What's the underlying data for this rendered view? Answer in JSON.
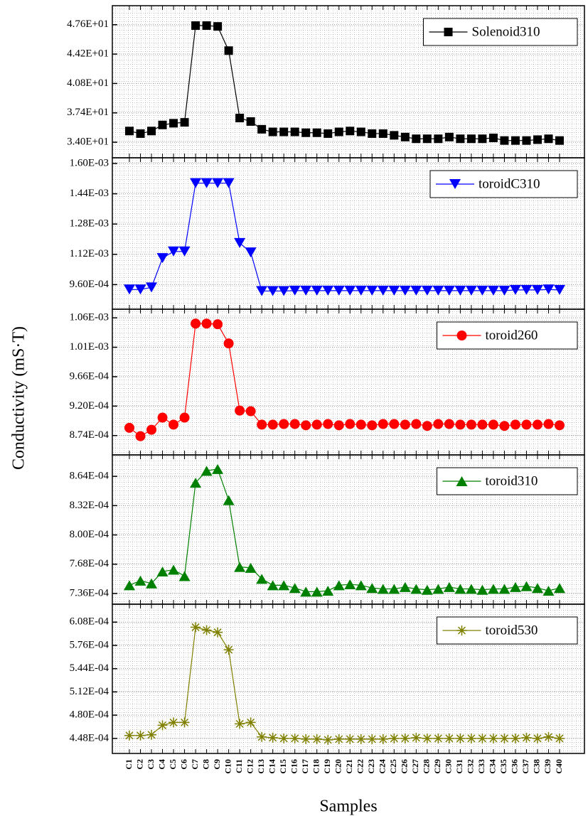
{
  "ylabel": "Conductivity (mS·T)",
  "chart_data": [
    {
      "type": "line",
      "marker": "square",
      "grid": true,
      "legend": "upper right",
      "ylim": [
        32.2,
        49.8
      ],
      "yticks": [
        {
          "value": 34,
          "label": "3.40E+01"
        },
        {
          "value": 37.4,
          "label": "3.74E+01"
        },
        {
          "value": 40.8,
          "label": "4.08E+01"
        },
        {
          "value": 44.2,
          "label": "4.42E+01"
        },
        {
          "value": 47.6,
          "label": "4.76E+01"
        }
      ],
      "series": [
        {
          "name": "Solenoid310",
          "color": "#000000",
          "values": [
            35.3,
            35.0,
            35.3,
            36.0,
            36.2,
            36.3,
            47.5,
            47.5,
            47.4,
            44.6,
            36.8,
            36.4,
            35.5,
            35.2,
            35.2,
            35.2,
            35.1,
            35.1,
            35.0,
            35.2,
            35.3,
            35.2,
            35.0,
            35.0,
            34.8,
            34.6,
            34.4,
            34.4,
            34.4,
            34.6,
            34.4,
            34.4,
            34.4,
            34.5,
            34.2,
            34.2,
            34.2,
            34.3,
            34.4,
            34.2
          ]
        }
      ]
    },
    {
      "type": "line",
      "marker": "triangle-down",
      "grid": true,
      "legend": "upper right",
      "ylim": [
        0.00083,
        0.00163
      ],
      "yticks": [
        {
          "value": 0.00096,
          "label": "9.60E-04"
        },
        {
          "value": 0.00112,
          "label": "1.12E-03"
        },
        {
          "value": 0.00128,
          "label": "1.28E-03"
        },
        {
          "value": 0.00144,
          "label": "1.44E-03"
        },
        {
          "value": 0.0016,
          "label": "1.60E-03"
        }
      ],
      "series": [
        {
          "name": "toroidC310",
          "color": "#0000ff",
          "values": [
            0.000934,
            0.000934,
            0.000945,
            0.0011,
            0.001135,
            0.001135,
            0.001496,
            0.001496,
            0.001496,
            0.001496,
            0.00118,
            0.00113,
            0.000926,
            0.000926,
            0.000926,
            0.000928,
            0.000928,
            0.000928,
            0.000928,
            0.000928,
            0.000928,
            0.000928,
            0.000928,
            0.000928,
            0.000928,
            0.000928,
            0.000928,
            0.000928,
            0.000928,
            0.000928,
            0.000928,
            0.000928,
            0.000928,
            0.000928,
            0.000928,
            0.000932,
            0.000932,
            0.000932,
            0.000934,
            0.000932
          ]
        }
      ]
    },
    {
      "type": "line",
      "marker": "circle",
      "grid": true,
      "legend": "upper right",
      "ylim": [
        0.0008437,
        0.0010715
      ],
      "yticks": [
        {
          "value": 0.000874,
          "label": "8.74E-04"
        },
        {
          "value": 0.00092,
          "label": "9.20E-04"
        },
        {
          "value": 0.000966,
          "label": "9.66E-04"
        },
        {
          "value": 0.001012,
          "label": "1.01E-03"
        },
        {
          "value": 0.001058,
          "label": "1.06E-03"
        }
      ],
      "series": [
        {
          "name": "toroid260",
          "color": "#ff0000",
          "values": [
            0.000886,
            0.000873,
            0.000883,
            0.000902,
            0.000891,
            0.000902,
            0.001049,
            0.001049,
            0.001048,
            0.001018,
            0.000913,
            0.000912,
            0.000891,
            0.000891,
            0.000892,
            0.000892,
            0.00089,
            0.000891,
            0.000892,
            0.00089,
            0.000892,
            0.000891,
            0.00089,
            0.000892,
            0.000892,
            0.000891,
            0.000892,
            0.000889,
            0.000892,
            0.000892,
            0.000891,
            0.000891,
            0.000891,
            0.000891,
            0.000889,
            0.000891,
            0.000891,
            0.000891,
            0.000892,
            0.00089
          ]
        }
      ]
    },
    {
      "type": "line",
      "marker": "triangle-up",
      "grid": true,
      "legend": "upper right",
      "ylim": [
        0.0007243,
        0.0008874
      ],
      "yticks": [
        {
          "value": 0.000736,
          "label": "7.36E-04"
        },
        {
          "value": 0.000768,
          "label": "7.68E-04"
        },
        {
          "value": 0.0008,
          "label": "8.00E-04"
        },
        {
          "value": 0.000832,
          "label": "8.32E-04"
        },
        {
          "value": 0.000864,
          "label": "8.64E-04"
        }
      ],
      "series": [
        {
          "name": "toroid310",
          "color": "#008000",
          "values": [
            0.000745,
            0.00075,
            0.000747,
            0.00076,
            0.000762,
            0.000755,
            0.000857,
            0.00087,
            0.000872,
            0.000838,
            0.000765,
            0.000764,
            0.000752,
            0.000745,
            0.000745,
            0.000742,
            0.000738,
            0.000738,
            0.000739,
            0.000745,
            0.000746,
            0.000745,
            0.000742,
            0.000741,
            0.000741,
            0.000743,
            0.000741,
            0.00074,
            0.000741,
            0.000743,
            0.000741,
            0.000741,
            0.00074,
            0.000741,
            0.000741,
            0.000743,
            0.000744,
            0.000742,
            0.000739,
            0.000742
          ]
        }
      ]
    },
    {
      "type": "line",
      "marker": "star",
      "grid": true,
      "legend": "upper right",
      "xlabel": "Samples",
      "categories": [
        "C1",
        "C2",
        "C3",
        "C4",
        "C5",
        "C6",
        "C7",
        "C8",
        "C9",
        "C10",
        "C11",
        "C12",
        "C13",
        "C14",
        "C15",
        "C16",
        "C17",
        "C18",
        "C19",
        "C20",
        "C21",
        "C22",
        "C23",
        "C24",
        "C25",
        "C26",
        "C27",
        "C28",
        "C29",
        "C30",
        "C31",
        "C32",
        "C33",
        "C34",
        "C35",
        "C36",
        "C37",
        "C38",
        "C39",
        "C40"
      ],
      "ylim": [
        0.0004273,
        0.0006327
      ],
      "yticks": [
        {
          "value": 0.000448,
          "label": "4.48E-04"
        },
        {
          "value": 0.00048,
          "label": "4.80E-04"
        },
        {
          "value": 0.000512,
          "label": "5.12E-04"
        },
        {
          "value": 0.000544,
          "label": "5.44E-04"
        },
        {
          "value": 0.000576,
          "label": "5.76E-04"
        },
        {
          "value": 0.000608,
          "label": "6.08E-04"
        }
      ],
      "series": [
        {
          "name": "toroid530",
          "color": "#808000",
          "values": [
            0.000452,
            0.000452,
            0.000453,
            0.000466,
            0.00047,
            0.00047,
            0.000601,
            0.000597,
            0.000594,
            0.00057,
            0.000468,
            0.00047,
            0.00045,
            0.000449,
            0.000448,
            0.000448,
            0.000447,
            0.000447,
            0.000446,
            0.000447,
            0.000447,
            0.000447,
            0.000447,
            0.000447,
            0.000448,
            0.000448,
            0.000449,
            0.000448,
            0.000448,
            0.000448,
            0.000448,
            0.000448,
            0.000448,
            0.000448,
            0.000448,
            0.000448,
            0.000449,
            0.000448,
            0.00045,
            0.000448
          ]
        }
      ]
    }
  ]
}
